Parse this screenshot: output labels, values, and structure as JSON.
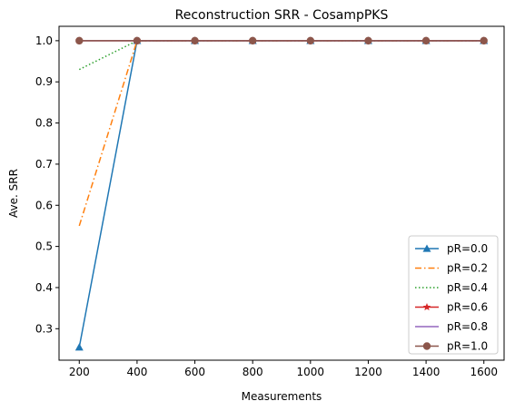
{
  "chart_data": {
    "type": "line",
    "title": "Reconstruction SRR - CosampPKS",
    "xlabel": "Measurements",
    "ylabel": "Ave. SRR",
    "x": [
      200,
      400,
      600,
      800,
      1000,
      1200,
      1400,
      1600
    ],
    "xticks": [
      200,
      400,
      600,
      800,
      1000,
      1200,
      1400,
      1600
    ],
    "yticks": [
      0.3,
      0.4,
      0.5,
      0.6,
      0.7,
      0.8,
      0.9,
      1.0
    ],
    "xlim": [
      130,
      1670
    ],
    "ylim": [
      0.2235,
      1.035
    ],
    "grid": false,
    "legend_position": "lower-right",
    "series": [
      {
        "name": "pR=0.0",
        "values": [
          0.255,
          1.0,
          1.0,
          1.0,
          1.0,
          1.0,
          1.0,
          1.0
        ],
        "color": "#1f77b4",
        "linestyle": "solid",
        "marker": "triangle"
      },
      {
        "name": "pR=0.2",
        "values": [
          0.55,
          1.0,
          1.0,
          1.0,
          1.0,
          1.0,
          1.0,
          1.0
        ],
        "color": "#ff7f0e",
        "linestyle": "dashdot",
        "marker": "none"
      },
      {
        "name": "pR=0.4",
        "values": [
          0.93,
          1.0,
          1.0,
          1.0,
          1.0,
          1.0,
          1.0,
          1.0
        ],
        "color": "#2ca02c",
        "linestyle": "dotted",
        "marker": "none"
      },
      {
        "name": "pR=0.6",
        "values": [
          1.0,
          1.0,
          1.0,
          1.0,
          1.0,
          1.0,
          1.0,
          1.0
        ],
        "color": "#d62728",
        "linestyle": "solid",
        "marker": "star"
      },
      {
        "name": "pR=0.8",
        "values": [
          1.0,
          1.0,
          1.0,
          1.0,
          1.0,
          1.0,
          1.0,
          1.0
        ],
        "color": "#9467bd",
        "linestyle": "solid",
        "marker": "none"
      },
      {
        "name": "pR=1.0",
        "values": [
          1.0,
          1.0,
          1.0,
          1.0,
          1.0,
          1.0,
          1.0,
          1.0
        ],
        "color": "#8c564b",
        "linestyle": "solid",
        "marker": "circle"
      }
    ]
  }
}
